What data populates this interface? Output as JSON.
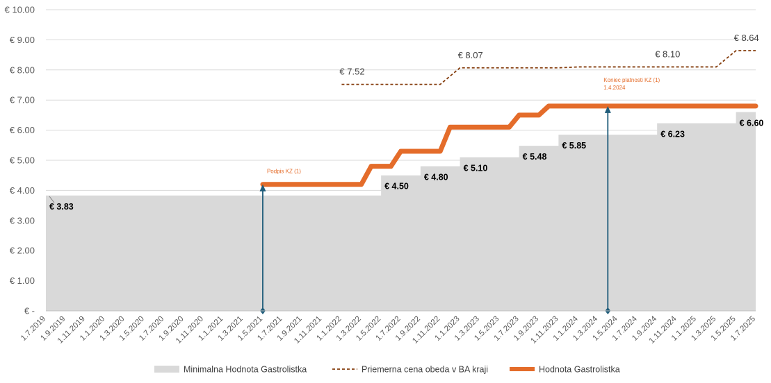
{
  "chart_data": {
    "type": "line",
    "y_tick_labels": [
      "€ -",
      "€ 1.00",
      "€ 2.00",
      "€ 3.00",
      "€ 4.00",
      "€ 5.00",
      "€ 6.00",
      "€ 7.00",
      "€ 8.00",
      "€ 9.00",
      "€ 10.00"
    ],
    "ylim": [
      0,
      10
    ],
    "x_tick_labels": [
      "1.7.2019",
      "1.9.2019",
      "1.11.2019",
      "1.1.2020",
      "1.3.2020",
      "1.5.2020",
      "1.7.2020",
      "1.9.2020",
      "1.11.2020",
      "1.1.2021",
      "1.3.2021",
      "1.5.2021",
      "1.7.2021",
      "1.9.2021",
      "1.11.2021",
      "1.1.2022",
      "1.3.2022",
      "1.5.2022",
      "1.7.2022",
      "1.9.2022",
      "1.11.2022",
      "1.1.2023",
      "1.3.2023",
      "1.5.2023",
      "1.7.2023",
      "1.9.2023",
      "1.11.2023",
      "1.1.2024",
      "1.3.2024",
      "1.5.2024",
      "1.7.2024",
      "1.9.2024",
      "1.11.2024",
      "1.1.2025",
      "1.3.2025",
      "1.5.2025",
      "1.7.2025"
    ],
    "grid": true,
    "legend_position": "bottom",
    "series": [
      {
        "name": "Minimalna Hodnota Gastrolistka",
        "kind": "area",
        "color": "#d9d9d9",
        "steps": [
          {
            "from": "1.7.2019",
            "to": "1.5.2022",
            "value": 3.83,
            "label": "€ 3.83"
          },
          {
            "from": "1.5.2022",
            "to": "1.9.2022",
            "value": 4.5,
            "label": "€ 4.50"
          },
          {
            "from": "1.9.2022",
            "to": "1.1.2023",
            "value": 4.8,
            "label": "€ 4.80"
          },
          {
            "from": "1.1.2023",
            "to": "1.7.2023",
            "value": 5.1,
            "label": "€ 5.10"
          },
          {
            "from": "1.7.2023",
            "to": "1.11.2023",
            "value": 5.48,
            "label": "€ 5.48"
          },
          {
            "from": "1.11.2023",
            "to": "1.9.2024",
            "value": 5.85,
            "label": "€ 5.85"
          },
          {
            "from": "1.9.2024",
            "to": "1.5.2025",
            "value": 6.23,
            "label": "€ 6.23"
          },
          {
            "from": "1.5.2025",
            "to": "1.7.2025",
            "value": 6.6,
            "label": "€ 6.60"
          }
        ]
      },
      {
        "name": "Priemerna cena obeda v BA kraji",
        "kind": "dashed-line",
        "color": "#843c0c",
        "points": [
          {
            "x": "1.1.2022",
            "y": 7.52
          },
          {
            "x": "1.11.2022",
            "y": 7.52
          },
          {
            "x": "1.1.2023",
            "y": 8.07
          },
          {
            "x": "1.11.2023",
            "y": 8.07
          },
          {
            "x": "1.1.2024",
            "y": 8.1
          },
          {
            "x": "1.3.2025",
            "y": 8.1
          },
          {
            "x": "1.5.2025",
            "y": 8.64
          },
          {
            "x": "1.7.2025",
            "y": 8.64
          }
        ],
        "labels": [
          {
            "x": "1.1.2022",
            "y": 7.52,
            "text": "€ 7.52"
          },
          {
            "x": "1.1.2023",
            "y": 8.07,
            "text": "€ 8.07"
          },
          {
            "x": "1.9.2024",
            "y": 8.1,
            "text": "€ 8.10"
          },
          {
            "x": "1.5.2025",
            "y": 8.64,
            "text": "€ 8.64"
          }
        ]
      },
      {
        "name": "Hodnota Gastrolistka",
        "kind": "line",
        "color": "#e46c2a",
        "points": [
          {
            "x": "1.5.2021",
            "y": 4.2
          },
          {
            "x": "1.3.2022",
            "y": 4.2
          },
          {
            "x": "1.4.2022",
            "y": 4.8
          },
          {
            "x": "1.6.2022",
            "y": 4.8
          },
          {
            "x": "1.7.2022",
            "y": 5.3
          },
          {
            "x": "1.11.2022",
            "y": 5.3
          },
          {
            "x": "1.12.2022",
            "y": 6.1
          },
          {
            "x": "1.6.2023",
            "y": 6.1
          },
          {
            "x": "1.7.2023",
            "y": 6.5
          },
          {
            "x": "1.9.2023",
            "y": 6.5
          },
          {
            "x": "1.10.2023",
            "y": 6.8
          },
          {
            "x": "1.7.2025",
            "y": 6.8
          }
        ]
      }
    ],
    "annotations": [
      {
        "x": "1.5.2021",
        "y_from": 0,
        "y_to": 4.2,
        "color": "#1f5c7a",
        "lines": [
          "Podpis KZ (1)"
        ]
      },
      {
        "x": "1.4.2024",
        "y_from": 0,
        "y_to": 6.8,
        "color": "#1f5c7a",
        "lines": [
          "Koniec platnosti KZ (1)",
          "1.4.2024"
        ]
      }
    ]
  }
}
